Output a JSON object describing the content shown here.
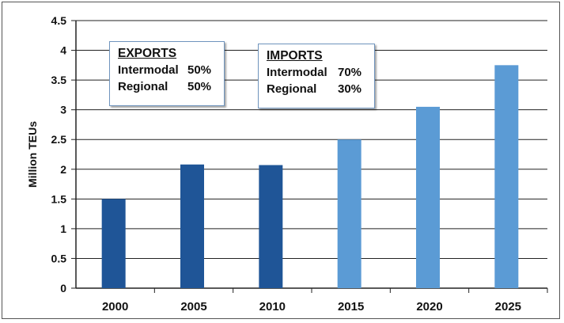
{
  "chart_data": {
    "type": "bar",
    "categories": [
      "2000",
      "2005",
      "2010",
      "2015",
      "2020",
      "2025"
    ],
    "values": [
      1.5,
      2.08,
      2.07,
      2.5,
      3.05,
      3.75
    ],
    "ylabel": "Million TEUs",
    "xlabel": "",
    "ylim": [
      0,
      4.5
    ],
    "yticks": [
      "0",
      "0.5",
      "1",
      "1.5",
      "2",
      "2.5",
      "3",
      "3.5",
      "4",
      "4.5"
    ],
    "grid": true,
    "colors": {
      "historical": "#1f5597",
      "projected": "#5b9bd5"
    },
    "projected_from_index": 3
  },
  "annotations": {
    "exports": {
      "title": "EXPORTS",
      "rows": [
        {
          "label": "Intermodal",
          "value": "50%"
        },
        {
          "label": "Regional",
          "value": "50%"
        }
      ]
    },
    "imports": {
      "title": "IMPORTS",
      "rows": [
        {
          "label": "Intermodal",
          "value": "70%"
        },
        {
          "label": "Regional",
          "value": "30%"
        }
      ]
    }
  }
}
